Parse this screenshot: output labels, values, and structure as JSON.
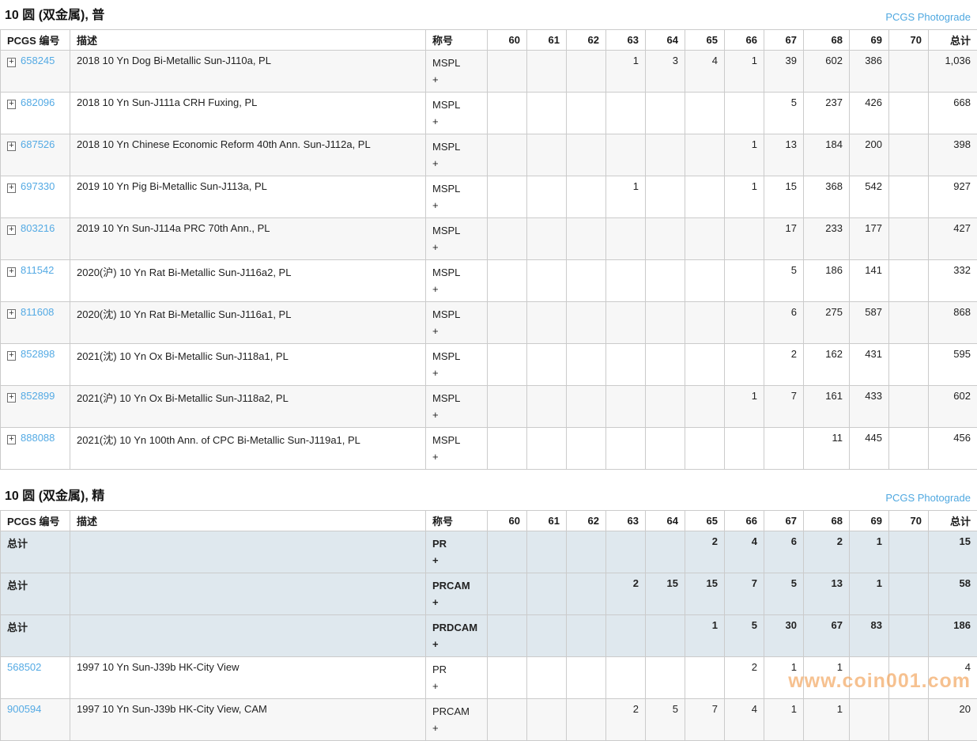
{
  "photograde_label": "PCGS Photograde",
  "watermark_text": "www.coin001.com",
  "colors": {
    "link_blue": "#54aae4",
    "photograde_link": "#4fa8e0",
    "total_row_bg": "#dfe8ee",
    "alt_row_bg": "#f7f7f7",
    "border": "#cbcbcb",
    "watermark_orange": "#f3a55c"
  },
  "icons": {
    "expand_glyph": "+",
    "expand_icon_name": "plus-box-expand-icon"
  },
  "table_headers": {
    "number": "PCGS 编号",
    "description": "描述",
    "designation": "称号",
    "total": "总计"
  },
  "grade_columns": [
    "60",
    "61",
    "62",
    "63",
    "64",
    "65",
    "66",
    "67",
    "68",
    "69",
    "70"
  ],
  "total_row_label": "总计",
  "tables": [
    {
      "title": "10 圆 (双金属), 普",
      "rows": [
        {
          "kind": "coin",
          "expandable": true,
          "number": "658245",
          "description": "2018 10 Yn Dog Bi-Metallic Sun-J110a, PL",
          "designation": "MSPL",
          "plus": "+",
          "grades": {
            "63": "1",
            "64": "3",
            "65": "4",
            "66": "1",
            "67": "39",
            "68": "602",
            "69": "386"
          },
          "total": "1,036"
        },
        {
          "kind": "coin",
          "expandable": true,
          "number": "682096",
          "description": "2018 10 Yn Sun-J111a CRH Fuxing, PL",
          "designation": "MSPL",
          "plus": "+",
          "grades": {
            "67": "5",
            "68": "237",
            "69": "426"
          },
          "total": "668"
        },
        {
          "kind": "coin",
          "expandable": true,
          "number": "687526",
          "description": "2018 10 Yn Chinese Economic Reform 40th Ann. Sun-J112a, PL",
          "designation": "MSPL",
          "plus": "+",
          "grades": {
            "66": "1",
            "67": "13",
            "68": "184",
            "69": "200"
          },
          "total": "398"
        },
        {
          "kind": "coin",
          "expandable": true,
          "number": "697330",
          "description": "2019 10 Yn Pig Bi-Metallic Sun-J113a, PL",
          "designation": "MSPL",
          "plus": "+",
          "grades": {
            "63": "1",
            "66": "1",
            "67": "15",
            "68": "368",
            "69": "542"
          },
          "total": "927"
        },
        {
          "kind": "coin",
          "expandable": true,
          "number": "803216",
          "description": "2019 10 Yn Sun-J114a PRC 70th Ann., PL",
          "designation": "MSPL",
          "plus": "+",
          "grades": {
            "67": "17",
            "68": "233",
            "69": "177"
          },
          "total": "427"
        },
        {
          "kind": "coin",
          "expandable": true,
          "number": "811542",
          "description": "2020(沪) 10 Yn Rat Bi-Metallic Sun-J116a2, PL",
          "designation": "MSPL",
          "plus": "+",
          "grades": {
            "67": "5",
            "68": "186",
            "69": "141"
          },
          "total": "332"
        },
        {
          "kind": "coin",
          "expandable": true,
          "number": "811608",
          "description": "2020(沈) 10 Yn Rat Bi-Metallic Sun-J116a1, PL",
          "designation": "MSPL",
          "plus": "+",
          "grades": {
            "67": "6",
            "68": "275",
            "69": "587"
          },
          "total": "868"
        },
        {
          "kind": "coin",
          "expandable": true,
          "number": "852898",
          "description": "2021(沈) 10 Yn Ox Bi-Metallic Sun-J118a1, PL",
          "designation": "MSPL",
          "plus": "+",
          "grades": {
            "67": "2",
            "68": "162",
            "69": "431"
          },
          "total": "595"
        },
        {
          "kind": "coin",
          "expandable": true,
          "number": "852899",
          "description": "2021(沪) 10 Yn Ox Bi-Metallic Sun-J118a2, PL",
          "designation": "MSPL",
          "plus": "+",
          "grades": {
            "66": "1",
            "67": "7",
            "68": "161",
            "69": "433"
          },
          "total": "602"
        },
        {
          "kind": "coin",
          "expandable": true,
          "number": "888088",
          "description": "2021(沈) 10 Yn 100th Ann. of CPC Bi-Metallic Sun-J119a1, PL",
          "designation": "MSPL",
          "plus": "+",
          "grades": {
            "68": "11",
            "69": "445"
          },
          "total": "456"
        }
      ]
    },
    {
      "title": "10 圆 (双金属), 精",
      "rows": [
        {
          "kind": "total",
          "label": "总计",
          "description": "",
          "designation": "PR",
          "plus": "+",
          "grades": {
            "65": "2",
            "66": "4",
            "67": "6",
            "68": "2",
            "69": "1"
          },
          "total": "15"
        },
        {
          "kind": "total",
          "label": "总计",
          "description": "",
          "designation": "PRCAM",
          "plus": "+",
          "grades": {
            "63": "2",
            "64": "15",
            "65": "15",
            "66": "7",
            "67": "5",
            "68": "13",
            "69": "1"
          },
          "total": "58"
        },
        {
          "kind": "total",
          "label": "总计",
          "description": "",
          "designation": "PRDCAM",
          "plus": "+",
          "grades": {
            "65": "1",
            "66": "5",
            "67": "30",
            "68": "67",
            "69": "83"
          },
          "total": "186"
        },
        {
          "kind": "coin",
          "expandable": false,
          "number": "568502",
          "description": "1997 10 Yn Sun-J39b HK-City View",
          "designation": "PR",
          "plus": "+",
          "grades": {
            "66": "2",
            "67": "1",
            "68": "1"
          },
          "total": "4"
        },
        {
          "kind": "coin",
          "expandable": false,
          "number": "900594",
          "description": "1997 10 Yn Sun-J39b HK-City View, CAM",
          "designation": "PRCAM",
          "plus": "+",
          "grades": {
            "63": "2",
            "64": "5",
            "65": "7",
            "66": "4",
            "67": "1",
            "68": "1"
          },
          "total": "20"
        }
      ]
    }
  ]
}
